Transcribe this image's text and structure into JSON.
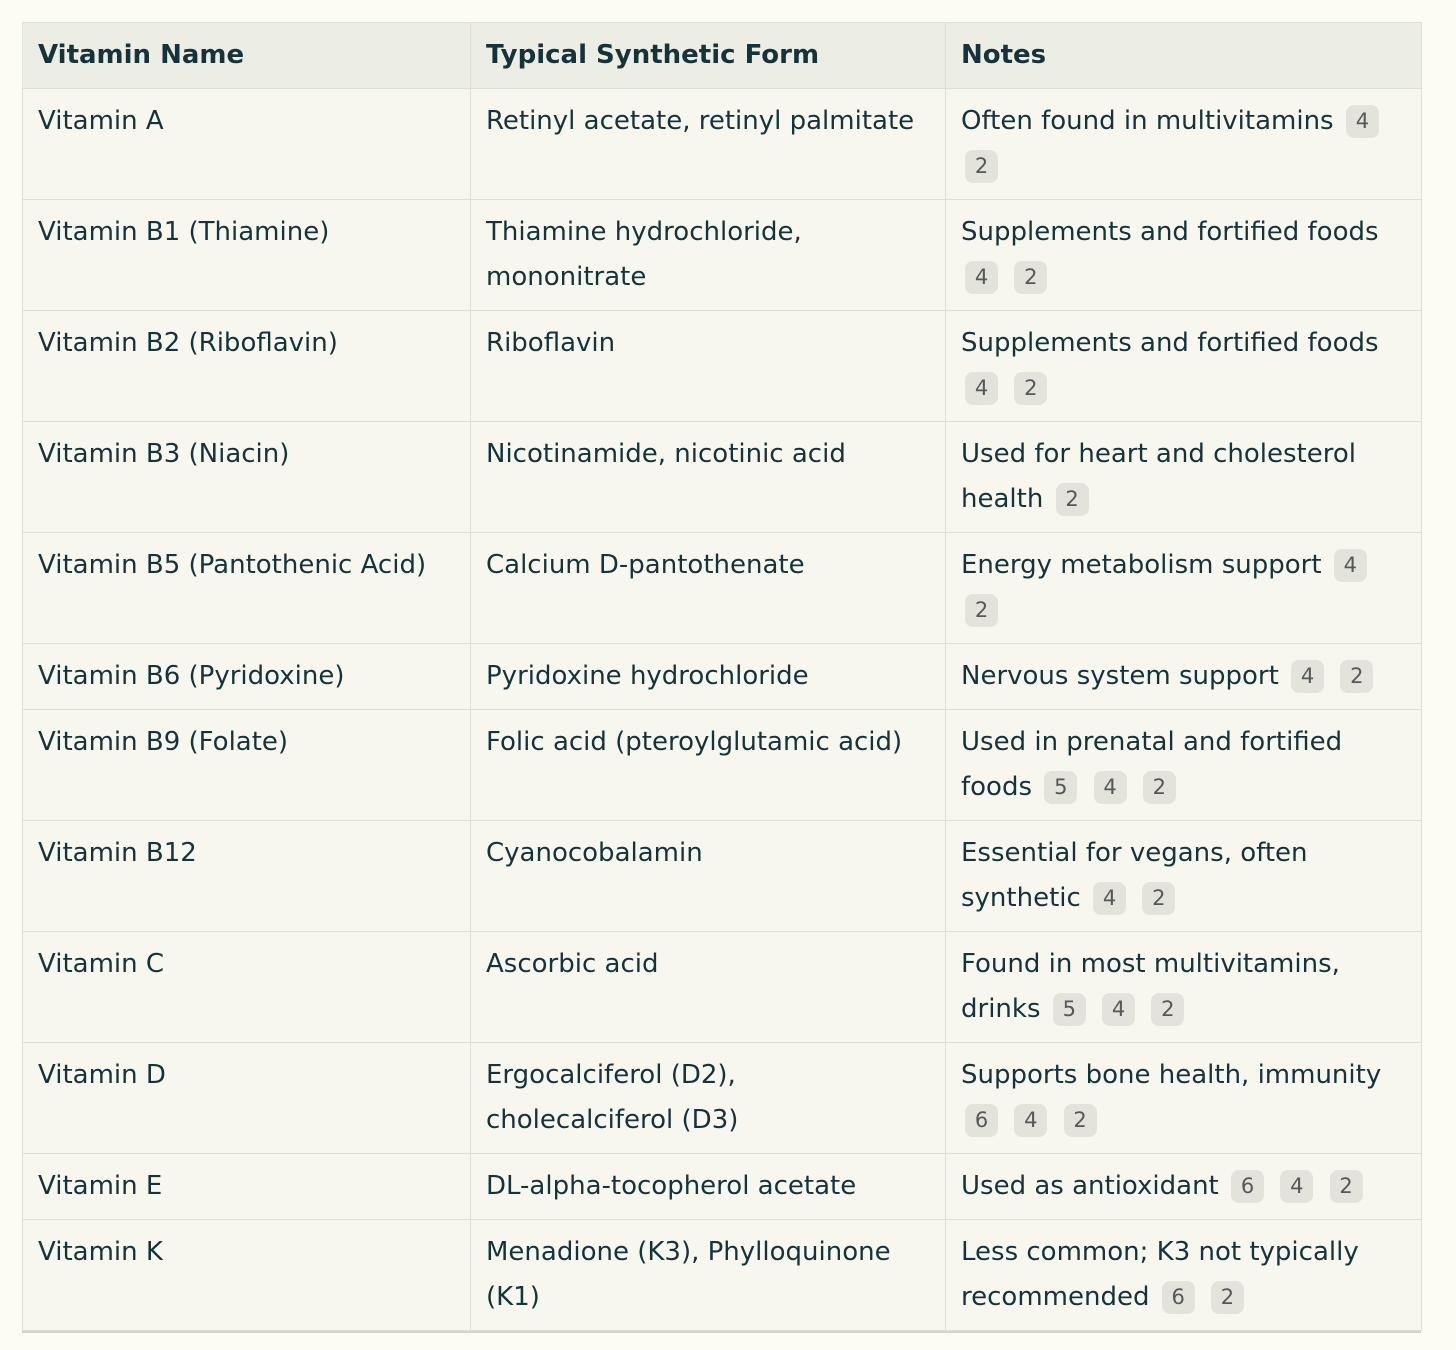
{
  "table": {
    "columns": [
      "Vitamin Name",
      "Typical Synthetic Form",
      "Notes"
    ],
    "rows": [
      {
        "name": "Vitamin A",
        "form": "Retinyl acetate, retinyl palmitate",
        "note": "Often found in multivitamins",
        "citations": [
          "4",
          "2"
        ]
      },
      {
        "name": "Vitamin B1 (Thiamine)",
        "form": "Thiamine hydrochloride, mononitrate",
        "note": "Supplements and fortified foods",
        "citations": [
          "4",
          "2"
        ]
      },
      {
        "name": "Vitamin B2 (Riboflavin)",
        "form": "Riboflavin",
        "note": "Supplements and fortified foods",
        "citations": [
          "4",
          "2"
        ]
      },
      {
        "name": "Vitamin B3 (Niacin)",
        "form": "Nicotinamide, nicotinic acid",
        "note": "Used for heart and cholesterol health",
        "citations": [
          "2"
        ]
      },
      {
        "name": "Vitamin B5 (Pantothenic Acid)",
        "form": "Calcium D-pantothenate",
        "note": "Energy metabolism support",
        "citations": [
          "4",
          "2"
        ]
      },
      {
        "name": "Vitamin B6 (Pyridoxine)",
        "form": "Pyridoxine hydrochloride",
        "note": "Nervous system support",
        "citations": [
          "4",
          "2"
        ]
      },
      {
        "name": "Vitamin B9 (Folate)",
        "form": "Folic acid (pteroylglutamic acid)",
        "note": "Used in prenatal and fortified foods",
        "citations": [
          "5",
          "4",
          "2"
        ]
      },
      {
        "name": "Vitamin B12",
        "form": "Cyanocobalamin",
        "note": "Essential for vegans, often synthetic",
        "citations": [
          "4",
          "2"
        ]
      },
      {
        "name": "Vitamin C",
        "form": "Ascorbic acid",
        "note": "Found in most multivitamins, drinks",
        "citations": [
          "5",
          "4",
          "2"
        ]
      },
      {
        "name": "Vitamin D",
        "form": "Ergocalciferol (D2), cholecalciferol (D3)",
        "note": "Supports bone health, immunity",
        "citations": [
          "6",
          "4",
          "2"
        ]
      },
      {
        "name": "Vitamin E",
        "form": "DL-alpha-tocopherol acetate",
        "note": "Used as antioxidant",
        "citations": [
          "6",
          "4",
          "2"
        ]
      },
      {
        "name": "Vitamin K",
        "form": "Menadione (K3), Phylloquinone (K1)",
        "note": "Less common; K3 not typically recommended",
        "citations": [
          "6",
          "2"
        ]
      }
    ]
  },
  "colors": {
    "page_background": "#FCFBF4",
    "cell_background": "#F7F7F0",
    "header_background": "#ECEDE4",
    "border": "#DFDFD6",
    "text": "#16333B",
    "badge_background": "#E3E3DB",
    "badge_text": "#55585A"
  }
}
